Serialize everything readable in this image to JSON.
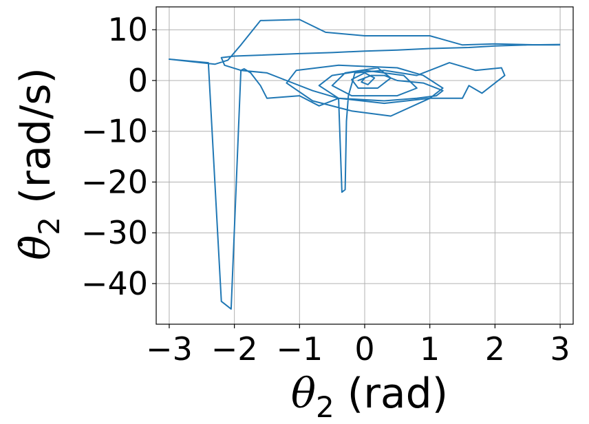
{
  "chart_data": {
    "type": "line",
    "title": "",
    "xlabel": "θ₂ (rad)",
    "ylabel": "θ̇₂ (rad/s)",
    "xlabel_parts": {
      "symbol": "θ",
      "sub": "2",
      "unit": " (rad)"
    },
    "ylabel_parts": {
      "symbol": "θ̇",
      "sub": "2",
      "unit": " (rad/s)"
    },
    "xlim": [
      -3.2,
      3.2
    ],
    "ylim": [
      -48,
      14.5
    ],
    "xticks": [
      -3,
      -2,
      -1,
      0,
      1,
      2,
      3
    ],
    "yticks": [
      -40,
      -30,
      -20,
      -10,
      0,
      10
    ],
    "xtick_labels": [
      "−3",
      "−2",
      "−1",
      "0",
      "1",
      "2",
      "3"
    ],
    "ytick_labels": [
      "−40",
      "−30",
      "−20",
      "−10",
      "0",
      "10"
    ],
    "grid": true,
    "line_color": "#1f77b4",
    "grid_color": "#b0b0b0",
    "series": [
      {
        "x": [
          3.0,
          2.7,
          2.0,
          1.5,
          1.0,
          0.5,
          0.0,
          -0.6,
          -1.0,
          -1.6,
          -1.9,
          -2.1,
          -2.3,
          -3.0,
          -2.4,
          -2.2,
          -2.05,
          -1.9,
          -1.85,
          -1.75,
          -1.6,
          -1.5,
          -1.0,
          -0.7,
          -0.4,
          -0.35,
          -0.3,
          -0.28,
          -0.25,
          -0.15,
          0.3,
          0.8,
          1.3,
          1.7,
          2.1,
          2.15,
          1.8,
          1.6,
          1.5,
          1.0,
          0.4,
          -0.2,
          -0.8,
          -1.2,
          -1.05,
          -0.4,
          0.5,
          0.9,
          1.2,
          1.0,
          0.3,
          -0.4,
          -0.7,
          -0.5,
          0.0,
          0.6,
          0.8,
          0.5,
          -0.2,
          -0.5,
          -0.3,
          0.2,
          0.4,
          0.2,
          -0.1,
          -0.2,
          0.0,
          0.15,
          0.05,
          -0.05,
          0.0,
          -0.1,
          0.1,
          0.3,
          0.5,
          0.9,
          1.2,
          1.1,
          0.8,
          0.3,
          -0.4,
          -0.8,
          -1.2,
          -1.5,
          -1.9,
          -2.15,
          -2.2,
          -2.0,
          -1.6,
          -1.0,
          -0.5,
          0.0,
          0.5,
          1.0,
          1.6,
          2.0,
          2.5,
          3.0
        ],
        "y": [
          7.0,
          7.0,
          7.2,
          7.0,
          8.8,
          8.8,
          8.8,
          9.5,
          12.0,
          11.8,
          7.0,
          4.0,
          3.2,
          4.2,
          3.5,
          -43.5,
          -45.0,
          2.0,
          2.3,
          1.5,
          -1.0,
          -3.5,
          -3.0,
          -5.0,
          -3.5,
          -22.0,
          -21.5,
          -8.0,
          -3.0,
          1.5,
          2.0,
          1.0,
          3.5,
          2.0,
          2.5,
          1.0,
          -2.5,
          -1.0,
          -3.5,
          -3.5,
          -7.0,
          -6.0,
          -4.0,
          -0.5,
          2.0,
          3.0,
          2.5,
          1.0,
          -1.5,
          -3.5,
          -4.5,
          -3.5,
          -1.0,
          1.0,
          2.0,
          1.0,
          -1.5,
          -3.0,
          -3.0,
          -1.0,
          1.5,
          2.5,
          0.5,
          -1.5,
          -1.5,
          0.2,
          1.5,
          0.5,
          -0.8,
          -0.3,
          0.5,
          0.0,
          1.0,
          1.0,
          0.0,
          -0.5,
          -2.0,
          -3.0,
          -3.5,
          -4.0,
          -3.5,
          -2.0,
          0.0,
          1.5,
          2.0,
          3.0,
          4.5,
          4.8,
          5.0,
          5.3,
          5.5,
          5.8,
          6.0,
          6.3,
          6.5,
          6.8,
          7.0,
          7.1
        ]
      }
    ]
  }
}
